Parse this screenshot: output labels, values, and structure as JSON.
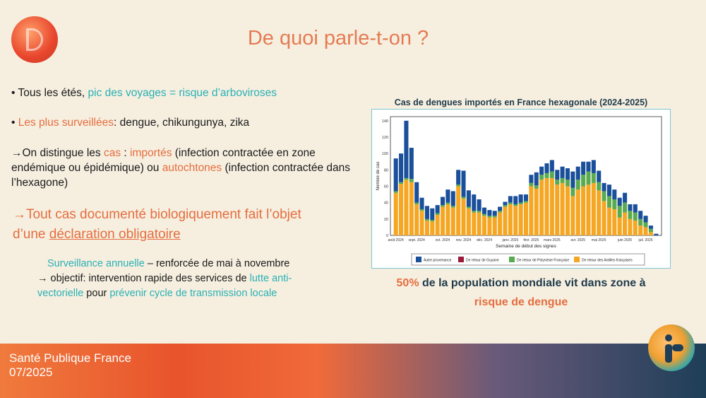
{
  "slide": {
    "title": "De quoi parle-t-on ?",
    "bullet1": {
      "prefix": "• Tous les étés, ",
      "highlight": "pic des voyages = risque d’arboviroses"
    },
    "bullet2": {
      "prefix": "• ",
      "highlight": "Les plus surveillées",
      "rest": ": dengue, chikungunya, zika"
    },
    "arrow1": {
      "p1": "On distingue les ",
      "cas": "cas",
      "p2": " : ",
      "importes": "importés",
      "p3": " (infection contractée en zone endémique ou épidémique) ou ",
      "autochtones": "autochtones",
      "p4": " (infection contractée dans l’hexagone)"
    },
    "big": {
      "line1": "Tout cas documenté biologiquement fait l’objet",
      "line2_prefix": "d’une ",
      "line2_underline": "déclaration obligatoire"
    },
    "surveillance": {
      "label": "Surveillance annuelle",
      "rest": " – renforcée de mai à novembre",
      "line2": " objectif: intervention rapide des services de ",
      "lutte": "lutte anti-vectorielle",
      "pour": " pour ",
      "prevenir": "prévenir cycle de transmission locale"
    },
    "stat": {
      "pct": "50%",
      "line1": " de la population mondiale vit dans zone à",
      "line2": "risque de dengue"
    }
  },
  "footer": {
    "org": "Santé Publique France",
    "date": "07/2025"
  },
  "chart_data": {
    "type": "bar",
    "title": "Cas de dengues importés en France hexagonale (2024-2025)",
    "xlabel": "Semaine de début des signes",
    "ylabel": "Nombre de cas",
    "ylim": [
      0,
      145
    ],
    "yticks": [
      0,
      20,
      40,
      60,
      80,
      100,
      120,
      140
    ],
    "xtick_labels": [
      "août 2024",
      "sept. 2024",
      "oct. 2024",
      "nov. 2024",
      "déc. 2024",
      "janv. 2025",
      "févr. 2025",
      "mars 2025",
      "avr. 2025",
      "mai 2025",
      "juin 2025",
      "juil. 2025"
    ],
    "xtick_positions": [
      0,
      4,
      9,
      13,
      17,
      22,
      26,
      30,
      35,
      39,
      44,
      48
    ],
    "colors": {
      "autre": "#1a4f9a",
      "guyane": "#9a1a3a",
      "polynesie": "#5aaa50",
      "antilles": "#f5a623"
    },
    "series": [
      {
        "name": "Autre provenance",
        "values": [
          40,
          35,
          70,
          38,
          25,
          14,
          16,
          14,
          10,
          10,
          16,
          18,
          18,
          32,
          20,
          20,
          14,
          8,
          7,
          6,
          5,
          4,
          8,
          10,
          10,
          8,
          10,
          16,
          10,
          12,
          14,
          12,
          14,
          14,
          20,
          16,
          16,
          12,
          16,
          14,
          10,
          14,
          12,
          10,
          12,
          8,
          10,
          10,
          8,
          4,
          2
        ]
      },
      {
        "name": "De retour de Guyane",
        "values": [
          0,
          0,
          0,
          0,
          0,
          0,
          0,
          0,
          0,
          0,
          0,
          0,
          0,
          0,
          0,
          0,
          0,
          0,
          0,
          0,
          0,
          0,
          0,
          0,
          0,
          0,
          0,
          0,
          0,
          0,
          0,
          0,
          0,
          0,
          0,
          0,
          0,
          0,
          0,
          0,
          0,
          0,
          0,
          0,
          0,
          0,
          0,
          0,
          0,
          0,
          0
        ]
      },
      {
        "name": "De retour de Polynésie Française",
        "values": [
          2,
          2,
          2,
          4,
          2,
          2,
          2,
          2,
          2,
          2,
          2,
          2,
          2,
          2,
          2,
          2,
          2,
          2,
          2,
          2,
          2,
          2,
          2,
          2,
          2,
          2,
          4,
          4,
          6,
          6,
          8,
          6,
          6,
          8,
          10,
          12,
          14,
          16,
          12,
          10,
          12,
          14,
          12,
          14,
          12,
          10,
          10,
          8,
          6,
          4,
          0
        ]
      },
      {
        "name": "De retour des Antilles françaises",
        "values": [
          52,
          63,
          68,
          65,
          38,
          30,
          18,
          17,
          25,
          35,
          38,
          34,
          60,
          45,
          33,
          28,
          28,
          24,
          22,
          22,
          28,
          35,
          38,
          36,
          38,
          40,
          60,
          57,
          68,
          70,
          70,
          62,
          64,
          60,
          48,
          56,
          60,
          62,
          64,
          55,
          42,
          34,
          32,
          22,
          28,
          20,
          18,
          12,
          10,
          4,
          0
        ]
      }
    ]
  }
}
